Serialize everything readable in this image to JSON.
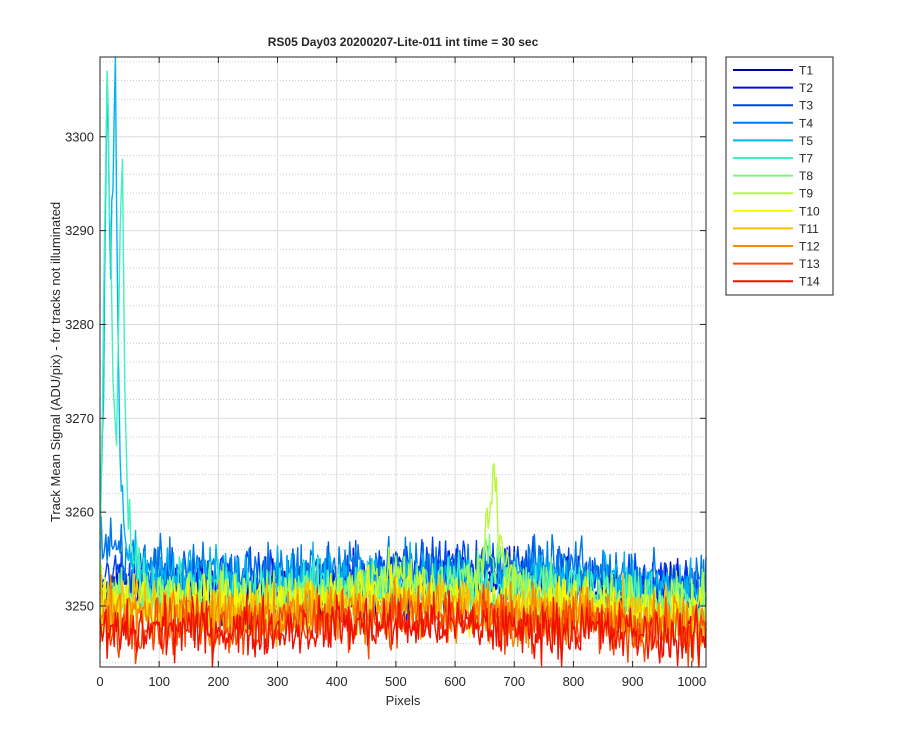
{
  "chart_data": {
    "type": "line",
    "title": "RS05 Day03 20200207-Lite-011 int time = 30 sec",
    "xlabel": "Pixels",
    "ylabel": "Track Mean Signal (ADU/pix) - for tracks not illuminated",
    "xlim": [
      0,
      1024
    ],
    "ylim": [
      3243.5,
      3308.5
    ],
    "x_ticks": [
      0,
      100,
      200,
      300,
      400,
      500,
      600,
      700,
      800,
      900,
      1000
    ],
    "y_ticks": [
      3250,
      3260,
      3270,
      3280,
      3290,
      3300
    ],
    "y_minor_step": 2,
    "x_minor_step": 20,
    "grid": true,
    "minor_grid": true,
    "legend_position": "outside-top-right",
    "series": [
      {
        "name": "T1",
        "color": "#0000b0",
        "base": 3252.0,
        "noise": 3.0,
        "x": [
          0,
          100,
          200,
          300,
          400,
          500,
          600,
          700,
          800,
          900,
          1024
        ],
        "y": [
          3251,
          3251,
          3251,
          3251,
          3251,
          3252,
          3252,
          3252,
          3252,
          3251,
          3251
        ]
      },
      {
        "name": "T2",
        "color": "#0010d8",
        "base": 3252.5,
        "noise": 3.0,
        "x": [
          0,
          100,
          200,
          300,
          400,
          500,
          600,
          700,
          800,
          900,
          1024
        ],
        "y": [
          3252,
          3252,
          3252,
          3252,
          3252,
          3253,
          3253,
          3253,
          3252,
          3252,
          3252
        ]
      },
      {
        "name": "T3",
        "color": "#0040f0",
        "base": 3253.0,
        "noise": 3.0,
        "x": [
          0,
          100,
          200,
          300,
          400,
          500,
          600,
          700,
          800,
          900,
          1024
        ],
        "y": [
          3253,
          3253,
          3253,
          3253,
          3253,
          3254,
          3254,
          3254,
          3253,
          3253,
          3252
        ]
      },
      {
        "name": "T4",
        "color": "#0078e6",
        "base": 3253.5,
        "noise": 3.0,
        "x": [
          0,
          5,
          25,
          60,
          100,
          200,
          300,
          400,
          500,
          600,
          700,
          800,
          900,
          1024
        ],
        "y": [
          3257,
          3257,
          3256.5,
          3255,
          3254,
          3253.5,
          3253.5,
          3254,
          3254,
          3254,
          3254,
          3254,
          3253,
          3252
        ]
      },
      {
        "name": "T5",
        "color": "#00b4f0",
        "base": 3253.0,
        "noise": 3.0,
        "x": [
          0,
          5,
          12,
          18,
          22,
          26,
          30,
          35,
          45,
          70,
          100,
          200,
          300,
          400,
          500,
          600,
          700,
          800,
          900,
          1024
        ],
        "y": [
          3256,
          3268,
          3306,
          3285,
          3297,
          3309,
          3280,
          3262,
          3256,
          3254,
          3253.5,
          3253,
          3253,
          3253,
          3253,
          3253,
          3253,
          3253,
          3252,
          3251
        ]
      },
      {
        "name": "T7",
        "color": "#40f0c0",
        "base": 3251.5,
        "noise": 3.0,
        "x": [
          0,
          5,
          12,
          20,
          28,
          34,
          38,
          42,
          50,
          60,
          80,
          100,
          200,
          300,
          400,
          500,
          600,
          700,
          800,
          900,
          1024
        ],
        "y": [
          3254,
          3275,
          3307,
          3280,
          3265,
          3290,
          3297,
          3272,
          3258,
          3254,
          3252,
          3251.5,
          3251.5,
          3251.5,
          3252,
          3252,
          3252,
          3252,
          3251.5,
          3251,
          3250
        ]
      },
      {
        "name": "T8",
        "color": "#80f880",
        "base": 3251.0,
        "noise": 3.0,
        "x": [
          0,
          100,
          200,
          300,
          400,
          500,
          600,
          640,
          660,
          680,
          700,
          800,
          900,
          1024
        ],
        "y": [
          3251,
          3251,
          3251,
          3251,
          3251,
          3252,
          3252,
          3254,
          3256,
          3254,
          3252,
          3251,
          3250.5,
          3250
        ]
      },
      {
        "name": "T9",
        "color": "#b8f840",
        "base": 3250.5,
        "noise": 3.0,
        "x": [
          0,
          100,
          200,
          300,
          400,
          480,
          500,
          520,
          600,
          640,
          655,
          665,
          675,
          690,
          720,
          800,
          900,
          1024
        ],
        "y": [
          3250.5,
          3250.5,
          3250.5,
          3250.5,
          3251,
          3253,
          3255,
          3252,
          3251,
          3253,
          3258,
          3264,
          3258,
          3253,
          3251,
          3250.5,
          3250,
          3249.5
        ]
      },
      {
        "name": "T10",
        "color": "#f8f800",
        "base": 3250.0,
        "noise": 3.0,
        "x": [
          0,
          100,
          200,
          300,
          400,
          500,
          600,
          700,
          800,
          900,
          1024
        ],
        "y": [
          3250,
          3250,
          3250,
          3250,
          3250.5,
          3251,
          3250.5,
          3250,
          3250,
          3249.5,
          3249
        ]
      },
      {
        "name": "T11",
        "color": "#f8c000",
        "base": 3249.5,
        "noise": 3.0,
        "x": [
          0,
          100,
          200,
          300,
          400,
          500,
          600,
          700,
          800,
          900,
          1024
        ],
        "y": [
          3249.5,
          3249.5,
          3249.5,
          3249.5,
          3250,
          3250.5,
          3250,
          3249.5,
          3249.5,
          3249,
          3248.5
        ]
      },
      {
        "name": "T12",
        "color": "#f88800",
        "base": 3249.0,
        "noise": 3.0,
        "x": [
          0,
          100,
          200,
          300,
          400,
          500,
          600,
          700,
          800,
          900,
          1024
        ],
        "y": [
          3249,
          3249,
          3249,
          3249,
          3249.5,
          3250,
          3249.5,
          3249,
          3249,
          3248.5,
          3248
        ]
      },
      {
        "name": "T13",
        "color": "#f84800",
        "base": 3248.0,
        "noise": 3.0,
        "x": [
          0,
          100,
          200,
          300,
          400,
          500,
          600,
          700,
          800,
          900,
          1024
        ],
        "y": [
          3247.5,
          3248,
          3248,
          3248,
          3248.5,
          3248.5,
          3248.5,
          3248,
          3248,
          3247.5,
          3247
        ]
      },
      {
        "name": "T14",
        "color": "#f01000",
        "base": 3247.5,
        "noise": 3.0,
        "x": [
          0,
          100,
          200,
          300,
          400,
          500,
          600,
          700,
          800,
          900,
          1024
        ],
        "y": [
          3247,
          3247.5,
          3247.5,
          3247.5,
          3248,
          3248,
          3248,
          3247.5,
          3247.5,
          3247,
          3246.5
        ]
      }
    ]
  }
}
